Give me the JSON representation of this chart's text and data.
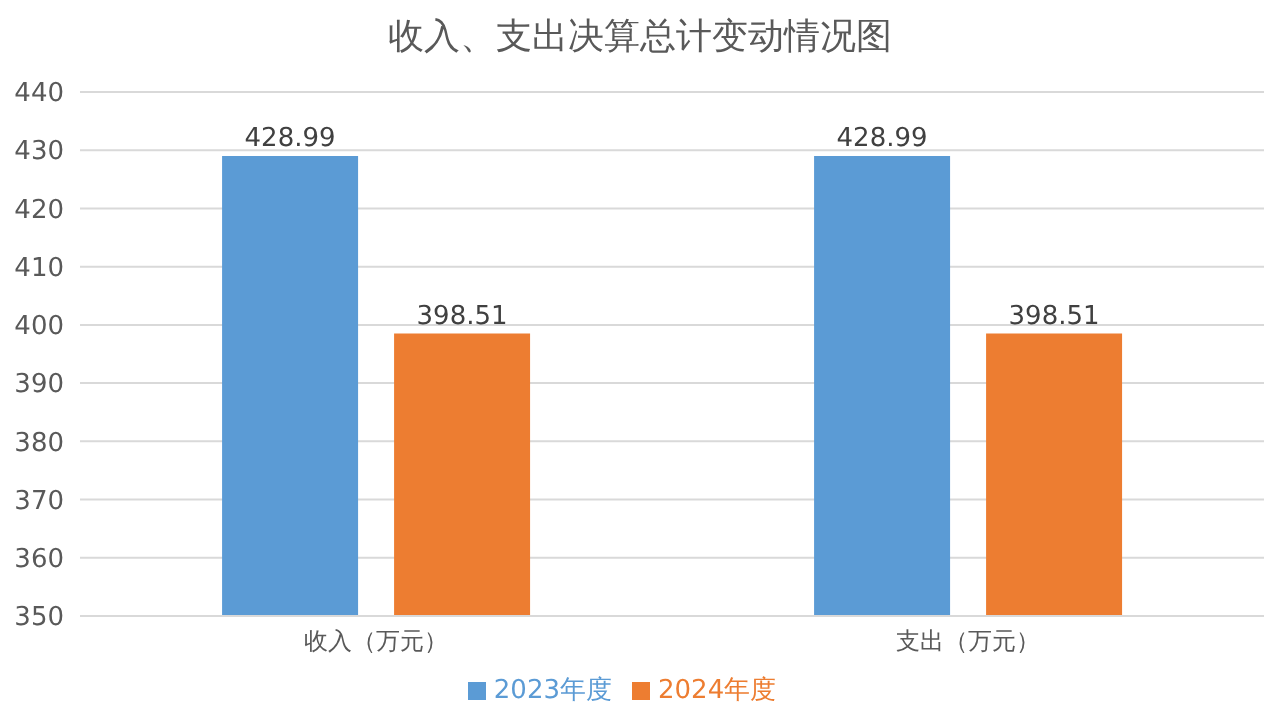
{
  "chart_data": {
    "type": "bar",
    "title": "收入、支出决算总计变动情况图",
    "categories": [
      "收入（万元）",
      "支出（万元）"
    ],
    "series": [
      {
        "name": "2023年度",
        "color": "#5b9bd5",
        "values": [
          428.99,
          428.99
        ]
      },
      {
        "name": "2024年度",
        "color": "#ed7d31",
        "values": [
          398.51,
          398.51
        ]
      }
    ],
    "ylim": [
      350,
      440
    ],
    "yticks": [
      350,
      360,
      370,
      380,
      390,
      400,
      410,
      420,
      430,
      440
    ],
    "grid": "y",
    "legend": "bottom",
    "data_labels": true
  }
}
